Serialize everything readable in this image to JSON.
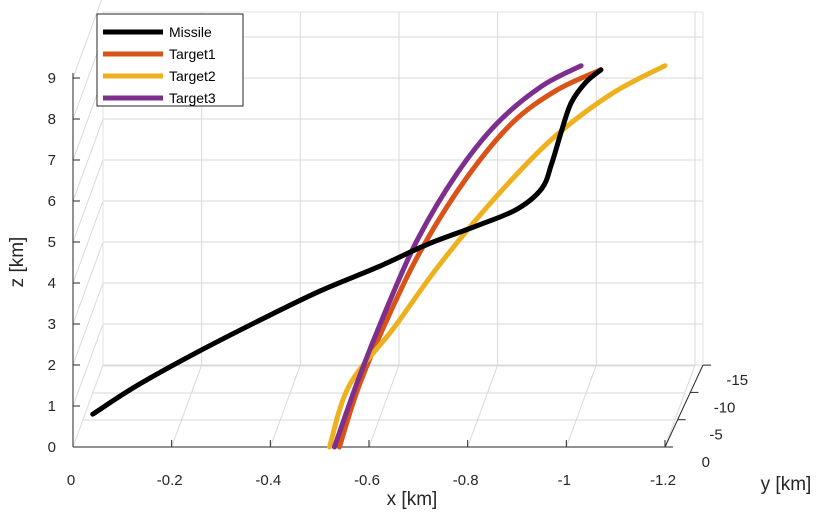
{
  "chart_data": {
    "type": "line",
    "title": "",
    "xlabel": "x [km]",
    "ylabel": "y [km]",
    "zlabel": "z [km]",
    "xlim": [
      0,
      -1.2
    ],
    "ylim": [
      0,
      -15
    ],
    "zlim": [
      0,
      10
    ],
    "xticks": [
      "0",
      "-0.2",
      "-0.4",
      "-0.6",
      "-0.8",
      "-1",
      "-1.2"
    ],
    "yticks": [
      "0",
      "-5",
      "-10",
      "-15"
    ],
    "zticks": [
      "0",
      "1",
      "2",
      "3",
      "4",
      "5",
      "6",
      "7",
      "8",
      "9"
    ],
    "grid": true,
    "legend_position": "top-left",
    "series": [
      {
        "name": "Missile",
        "color": "#000000",
        "points": [
          {
            "x": -0.04,
            "z": 0.8
          },
          {
            "x": -0.13,
            "z": 1.5
          },
          {
            "x": -0.25,
            "z": 2.3
          },
          {
            "x": -0.38,
            "z": 3.1
          },
          {
            "x": -0.5,
            "z": 3.8
          },
          {
            "x": -0.62,
            "z": 4.4
          },
          {
            "x": -0.72,
            "z": 4.95
          },
          {
            "x": -0.82,
            "z": 5.4
          },
          {
            "x": -0.9,
            "z": 5.8
          },
          {
            "x": -0.95,
            "z": 6.3
          },
          {
            "x": -0.97,
            "z": 6.9
          },
          {
            "x": -0.99,
            "z": 7.7
          },
          {
            "x": -1.01,
            "z": 8.4
          },
          {
            "x": -1.04,
            "z": 8.9
          },
          {
            "x": -1.07,
            "z": 9.2
          }
        ]
      },
      {
        "name": "Target1",
        "color": "#d95319",
        "points": [
          {
            "x": -0.54,
            "z": 0.0
          },
          {
            "x": -0.58,
            "z": 1.5
          },
          {
            "x": -0.64,
            "z": 3.2
          },
          {
            "x": -0.71,
            "z": 4.9
          },
          {
            "x": -0.8,
            "z": 6.6
          },
          {
            "x": -0.89,
            "z": 7.9
          },
          {
            "x": -0.98,
            "z": 8.7
          },
          {
            "x": -1.07,
            "z": 9.2
          }
        ]
      },
      {
        "name": "Target2",
        "color": "#edb120",
        "points": [
          {
            "x": -0.52,
            "z": 0.0
          },
          {
            "x": -0.56,
            "z": 1.5
          },
          {
            "x": -0.65,
            "z": 2.9
          },
          {
            "x": -0.74,
            "z": 4.4
          },
          {
            "x": -0.85,
            "z": 6.0
          },
          {
            "x": -0.97,
            "z": 7.5
          },
          {
            "x": -1.09,
            "z": 8.6
          },
          {
            "x": -1.2,
            "z": 9.3
          }
        ]
      },
      {
        "name": "Target3",
        "color": "#7e2f8e",
        "points": [
          {
            "x": -0.53,
            "z": 0.0
          },
          {
            "x": -0.58,
            "z": 1.7
          },
          {
            "x": -0.64,
            "z": 3.5
          },
          {
            "x": -0.7,
            "z": 5.1
          },
          {
            "x": -0.78,
            "z": 6.7
          },
          {
            "x": -0.86,
            "z": 7.9
          },
          {
            "x": -0.95,
            "z": 8.8
          },
          {
            "x": -1.03,
            "z": 9.3
          }
        ]
      }
    ]
  }
}
